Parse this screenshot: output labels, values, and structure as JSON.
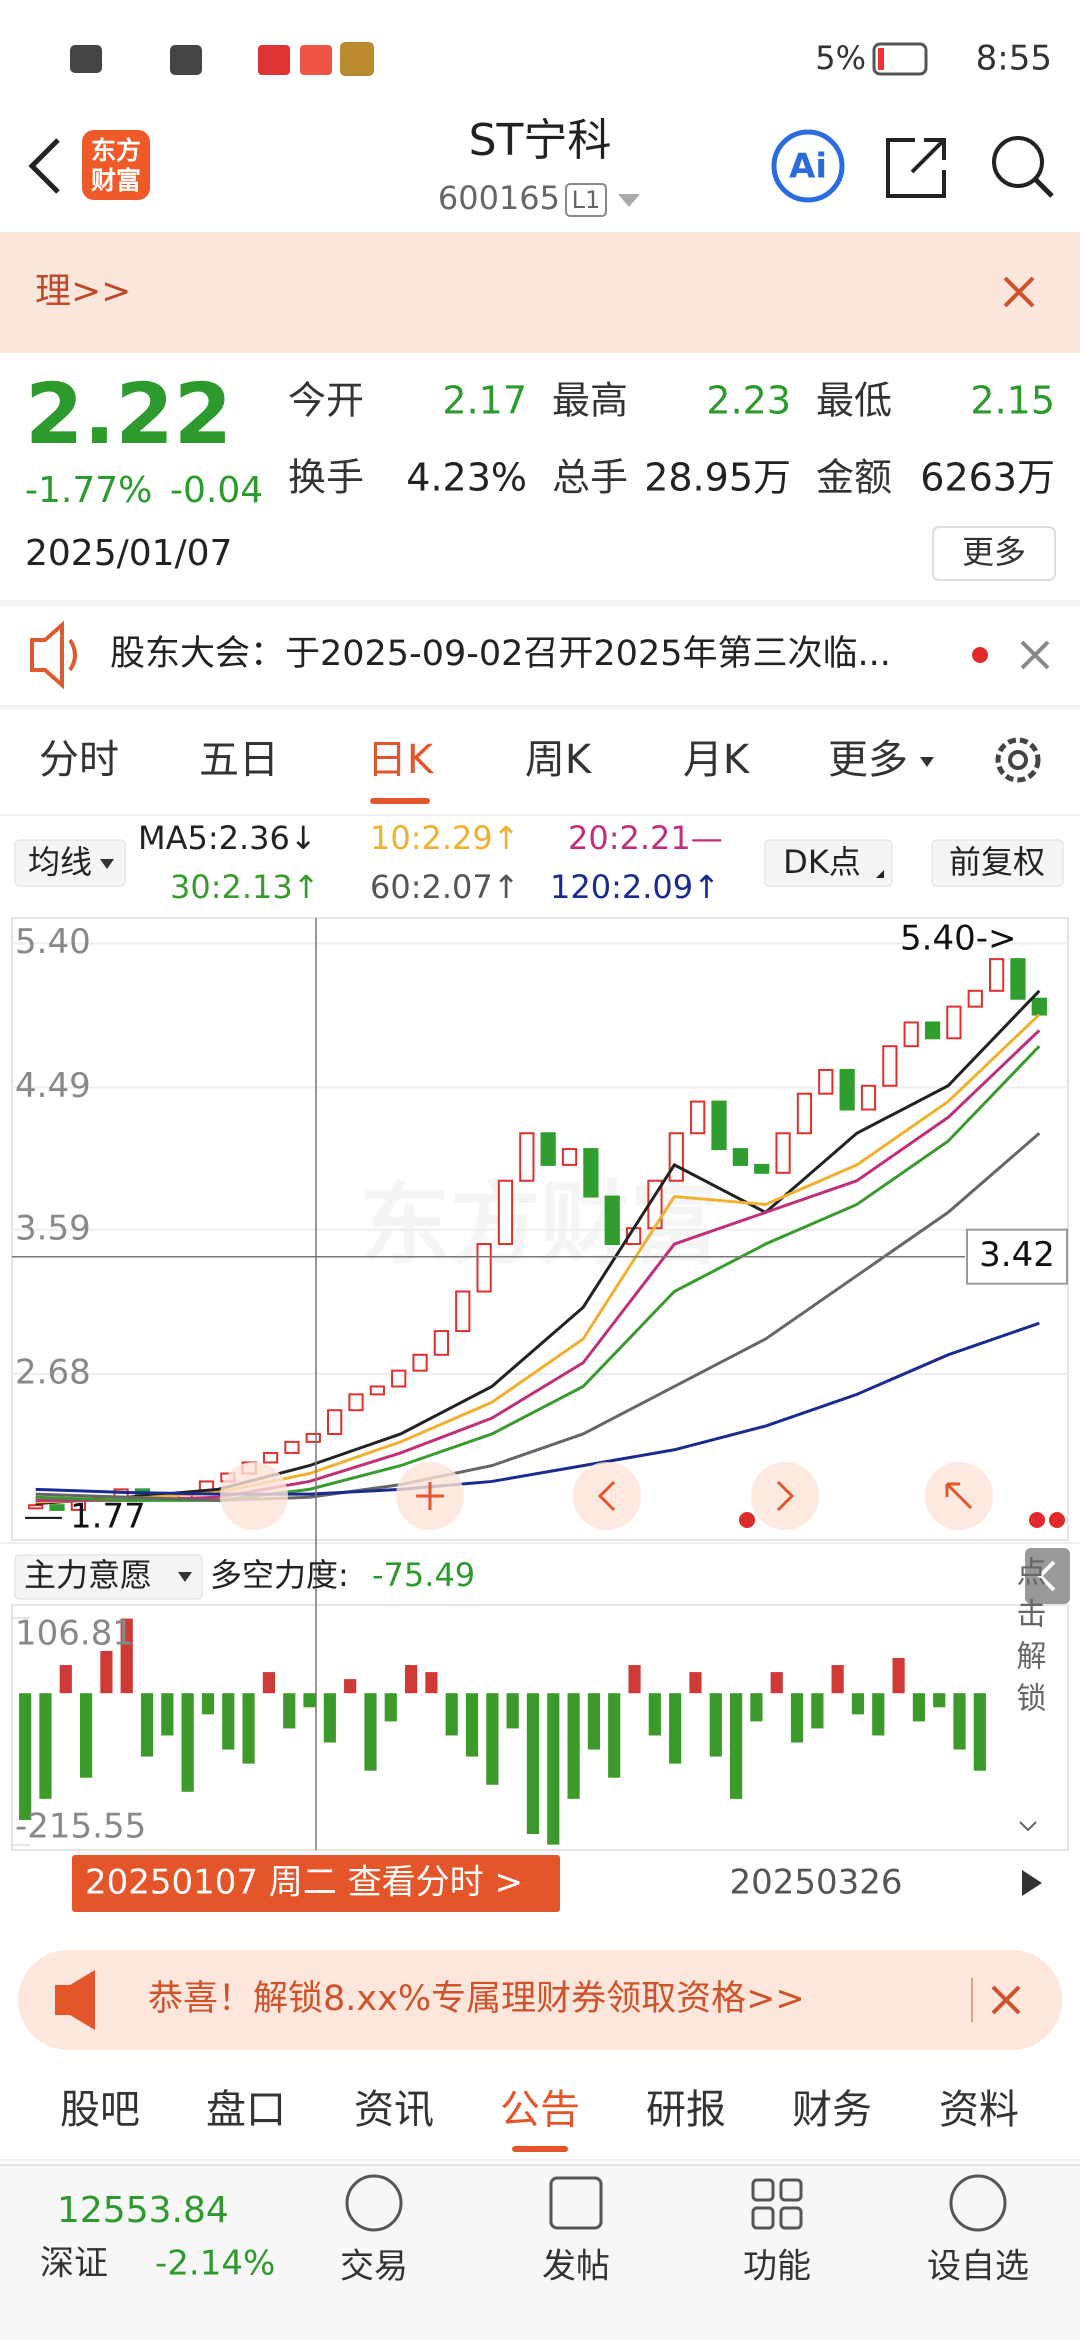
{
  "status_bar": {
    "time": "8:55",
    "battery": "5%"
  },
  "header": {
    "logo": [
      "东方",
      "财富"
    ],
    "title": "ST宁科",
    "code": "600165",
    "level": "L1"
  },
  "banner": {
    "text": "理>>"
  },
  "quote": {
    "price": "2.22",
    "change_pct": "-1.77%",
    "change": "-0.04",
    "date": "2025/01/07",
    "fields": [
      [
        "今开",
        "2.17"
      ],
      [
        "最高",
        "2.23"
      ],
      [
        "最低",
        "2.15"
      ],
      [
        "换手",
        "4.23%"
      ],
      [
        "总手",
        "28.95万"
      ],
      [
        "金额",
        "6263万"
      ]
    ],
    "more": "更多"
  },
  "notice": {
    "text": "股东大会：于2025-09-02召开2025年第三次临..."
  },
  "period_tabs": {
    "items": [
      "分时",
      "五日",
      "日K",
      "周K",
      "月K",
      "更多"
    ],
    "active": 2
  },
  "ma_row": {
    "selector": "均线",
    "items": [
      {
        "label": "MA5:2.36↓",
        "color": "#222222"
      },
      {
        "label": "10:2.29↑",
        "color": "#f0b030"
      },
      {
        "label": "20:2.21—",
        "color": "#c0307a"
      },
      {
        "label": "30:2.13↑",
        "color": "#3a9a30"
      },
      {
        "label": "60:2.07↑",
        "color": "#555555"
      },
      {
        "label": "120:2.09↑",
        "color": "#1a2a90"
      }
    ],
    "dk": "DK点",
    "adjust": "前复权"
  },
  "chart_data": [
    {
      "type": "candlestick",
      "open": [
        1.83,
        1.85,
        1.82,
        1.88,
        1.9,
        1.95,
        1.92,
        1.88,
        1.93,
        2.0,
        2.05,
        2.12,
        2.18,
        2.25,
        2.3,
        2.45,
        2.55,
        2.6,
        2.7,
        2.8,
        2.95,
        3.2,
        3.5,
        3.9,
        4.2,
        4.0,
        4.1,
        3.8,
        3.5,
        3.6,
        3.9,
        4.2,
        4.4,
        4.1,
        4.0,
        3.95,
        4.2,
        4.45,
        4.6,
        4.35,
        4.5,
        4.75,
        4.9,
        4.8,
        5.0,
        5.1,
        5.3,
        5.05
      ],
      "close": [
        1.85,
        1.82,
        1.88,
        1.9,
        1.95,
        1.92,
        1.88,
        1.93,
        2.0,
        2.05,
        2.12,
        2.18,
        2.25,
        2.3,
        2.45,
        2.55,
        2.6,
        2.7,
        2.8,
        2.95,
        3.2,
        3.5,
        3.9,
        4.2,
        4.0,
        4.1,
        3.8,
        3.5,
        3.6,
        3.9,
        4.2,
        4.4,
        4.1,
        4.0,
        3.95,
        4.2,
        4.45,
        4.6,
        4.35,
        4.5,
        4.75,
        4.9,
        4.8,
        5.0,
        5.1,
        5.3,
        5.05,
        4.95
      ],
      "up_color": "#e0302e",
      "down_color": "#2f9e2f",
      "ylim": [
        1.63,
        5.56
      ],
      "yticks": [
        {
          "value": 5.4,
          "label": "5.40"
        },
        4.49,
        3.59,
        2.68
      ],
      "high_label": "5.40->",
      "low_label": 1.77,
      "crosshair": 3.42,
      "lines": [
        {
          "color": "#222222",
          "values": [
            1.86,
            1.9,
            1.95,
            2.1,
            2.3,
            2.6,
            3.1,
            4.0,
            3.7,
            4.2,
            4.5,
            5.1
          ]
        },
        {
          "color": "#f0b030",
          "values": [
            1.87,
            1.89,
            1.93,
            2.05,
            2.25,
            2.5,
            2.9,
            3.8,
            3.75,
            4.0,
            4.4,
            4.95
          ]
        },
        {
          "color": "#c0307a",
          "values": [
            1.88,
            1.88,
            1.9,
            2.0,
            2.18,
            2.4,
            2.75,
            3.5,
            3.7,
            3.9,
            4.3,
            4.85
          ]
        },
        {
          "color": "#3a9a30",
          "values": [
            1.9,
            1.88,
            1.88,
            1.95,
            2.1,
            2.3,
            2.6,
            3.2,
            3.5,
            3.75,
            4.15,
            4.75
          ]
        },
        {
          "color": "#666666",
          "values": [
            1.92,
            1.9,
            1.88,
            1.9,
            1.98,
            2.1,
            2.3,
            2.6,
            2.9,
            3.3,
            3.7,
            4.2
          ]
        },
        {
          "color": "#1a2a90",
          "values": [
            1.95,
            1.93,
            1.92,
            1.92,
            1.95,
            2.0,
            2.1,
            2.2,
            2.35,
            2.55,
            2.8,
            3.0
          ]
        }
      ]
    },
    {
      "type": "bar",
      "selector": "主力意愿",
      "title": "多空力度:",
      "title_value": -75.49,
      "values": [
        -180,
        -150,
        40,
        -120,
        60,
        106,
        -90,
        -60,
        -140,
        -30,
        -80,
        -100,
        30,
        -50,
        -20,
        -70,
        20,
        -110,
        -40,
        40,
        30,
        -60,
        -90,
        -130,
        -50,
        -200,
        -215,
        -150,
        -80,
        -120,
        40,
        -60,
        -100,
        30,
        -90,
        -150,
        -40,
        30,
        -70,
        -50,
        40,
        -30,
        -60,
        50,
        -40,
        -20,
        -80,
        -110
      ],
      "pos_color": "#d03a36",
      "neg_color": "#3c9a2a",
      "ylim": [
        -215.55,
        106.81
      ],
      "yticks": [
        106.81,
        -215.55
      ],
      "side_text": "点击解锁"
    }
  ],
  "date_row": {
    "selected": "20250107 周二 查看分时 >",
    "date": "20250326"
  },
  "promo": {
    "text": "恭喜！解锁8.xx%专属理财券领取资格>>"
  },
  "info_tabs": {
    "items": [
      "股吧",
      "盘口",
      "资讯",
      "公告",
      "研报",
      "财务",
      "资料"
    ],
    "active": 3
  },
  "bottom_bar": {
    "index_value": "12553.84",
    "index_name": "深证",
    "index_change": "-2.14%",
    "items": [
      "交易",
      "发帖",
      "功能",
      "设自选"
    ]
  }
}
